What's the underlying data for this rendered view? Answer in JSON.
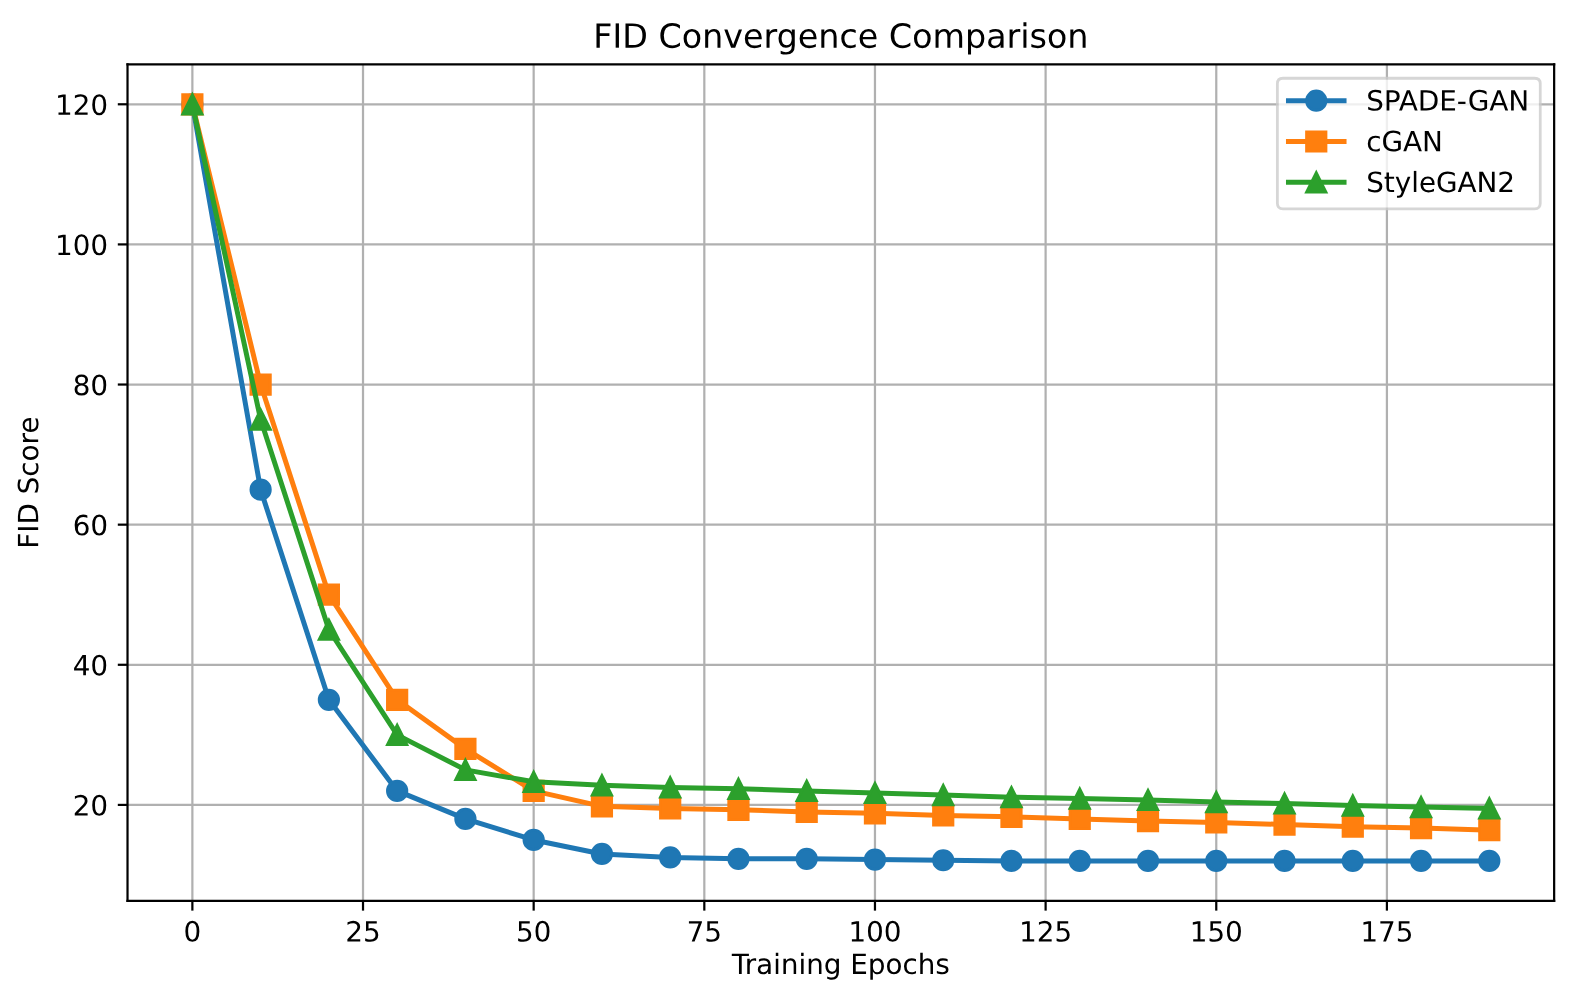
{
  "chart_data": {
    "type": "line",
    "title": "FID Convergence Comparison",
    "xlabel": "Training Epochs",
    "ylabel": "FID Score",
    "x": [
      0,
      10,
      20,
      30,
      40,
      50,
      60,
      70,
      80,
      90,
      100,
      110,
      120,
      130,
      140,
      150,
      160,
      170,
      180,
      190
    ],
    "series": [
      {
        "name": "SPADE-GAN",
        "color": "#1f77b4",
        "marker": "circle",
        "values": [
          120,
          65,
          35,
          22,
          18,
          15,
          13,
          12.5,
          12.3,
          12.3,
          12.2,
          12.1,
          12,
          12,
          12,
          12,
          12,
          12,
          12,
          12
        ]
      },
      {
        "name": "cGAN",
        "color": "#ff7f0e",
        "marker": "square",
        "values": [
          120,
          80,
          50,
          35,
          28,
          22,
          19.8,
          19.5,
          19.3,
          19,
          18.8,
          18.5,
          18.3,
          18,
          17.7,
          17.5,
          17.2,
          16.9,
          16.7,
          16.4
        ]
      },
      {
        "name": "StyleGAN2",
        "color": "#2ca02c",
        "marker": "triangle",
        "values": [
          120,
          75,
          45,
          30,
          25,
          23.3,
          22.8,
          22.5,
          22.3,
          22,
          21.7,
          21.4,
          21.1,
          20.9,
          20.7,
          20.4,
          20.2,
          19.9,
          19.7,
          19.5
        ]
      }
    ],
    "xlim": [
      -9.5,
      199.5
    ],
    "ylim": [
      6.3,
      125.7
    ],
    "xticks": [
      0,
      25,
      50,
      75,
      100,
      125,
      150,
      175
    ],
    "yticks": [
      20,
      40,
      60,
      80,
      100,
      120
    ],
    "grid": true,
    "legend": "top right",
    "line_style": "solid"
  }
}
